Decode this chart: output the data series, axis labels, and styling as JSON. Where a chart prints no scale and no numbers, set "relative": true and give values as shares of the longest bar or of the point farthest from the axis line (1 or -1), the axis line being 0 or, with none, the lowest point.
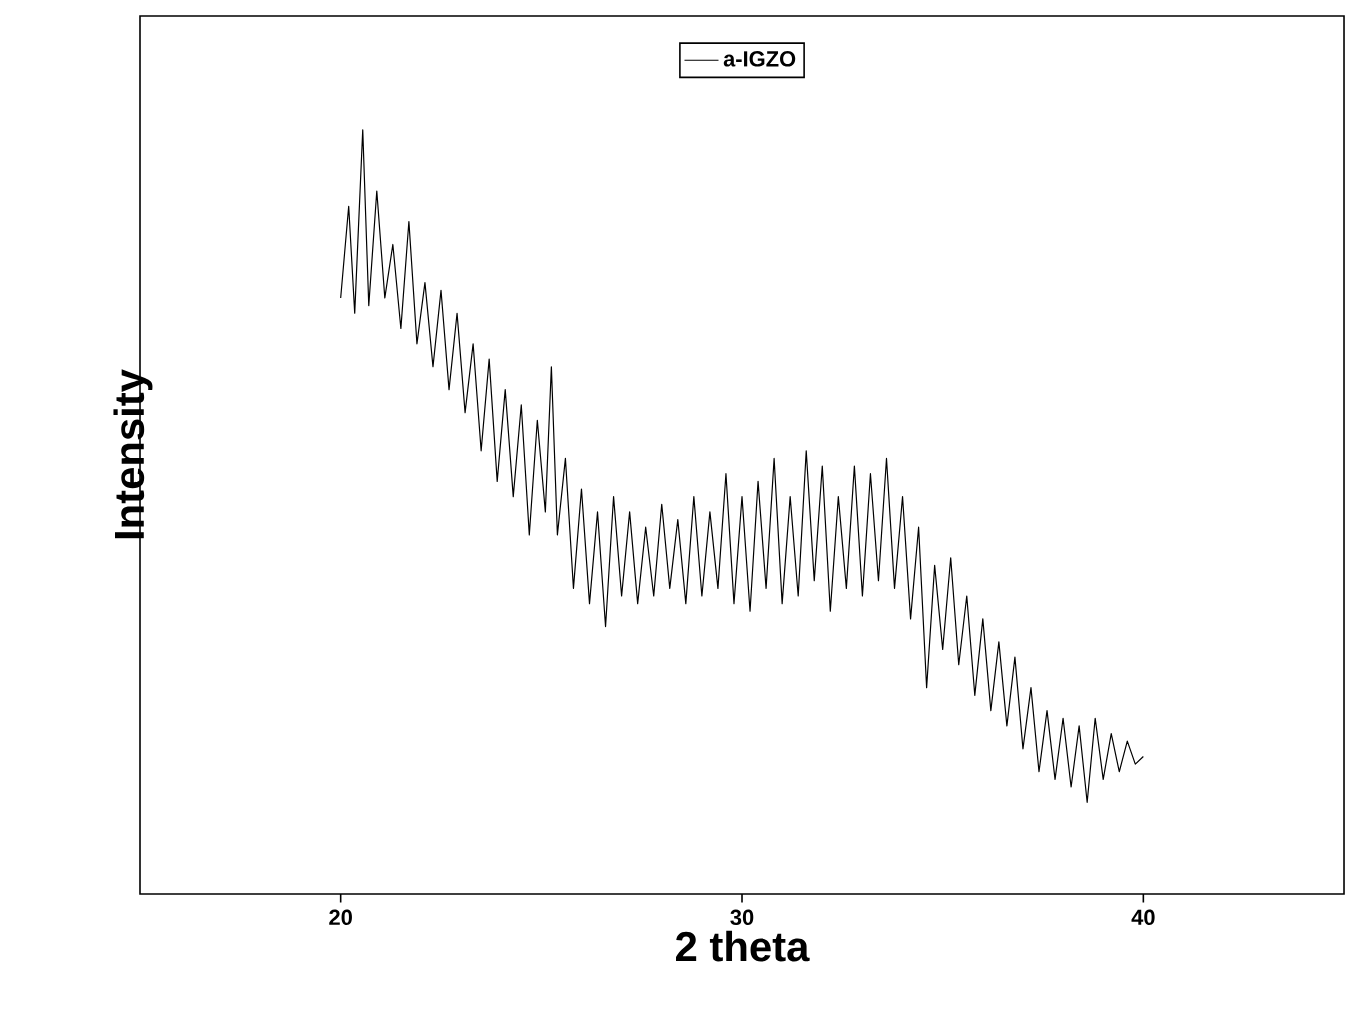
{
  "chart_data": {
    "type": "line",
    "xlabel": "2 theta",
    "ylabel": "Intensity",
    "relative": true,
    "xlim": [
      15,
      45
    ],
    "xticks": [
      20,
      30,
      40
    ],
    "legend": "top",
    "marker": "none",
    "line_style": "solid",
    "series": [
      {
        "name": "a-IGZO",
        "color": "#000000",
        "x": [
          20,
          20.2,
          20.35,
          20.55,
          20.7,
          20.9,
          21.1,
          21.3,
          21.5,
          21.7,
          21.9,
          22.1,
          22.3,
          22.5,
          22.7,
          22.9,
          23.1,
          23.3,
          23.5,
          23.7,
          23.9,
          24.1,
          24.3,
          24.5,
          24.7,
          24.9,
          25.1,
          25.25,
          25.4,
          25.6,
          25.8,
          26.0,
          26.2,
          26.4,
          26.6,
          26.8,
          27.0,
          27.2,
          27.4,
          27.6,
          27.8,
          28.0,
          28.2,
          28.4,
          28.6,
          28.8,
          29.0,
          29.2,
          29.4,
          29.6,
          29.8,
          30.0,
          30.2,
          30.4,
          30.6,
          30.8,
          31.0,
          31.2,
          31.4,
          31.6,
          31.8,
          32.0,
          32.2,
          32.4,
          32.6,
          32.8,
          33.0,
          33.2,
          33.4,
          33.6,
          33.8,
          34.0,
          34.2,
          34.4,
          34.6,
          34.8,
          35.0,
          35.2,
          35.4,
          35.6,
          35.8,
          36.0,
          36.2,
          36.4,
          36.6,
          36.8,
          37.0,
          37.2,
          37.4,
          37.6,
          37.8,
          38.0,
          38.2,
          38.4,
          38.6,
          38.8,
          39.0,
          39.2,
          39.4,
          39.6,
          39.8,
          40.0
        ],
        "values": [
          0.78,
          0.9,
          0.76,
          1.0,
          0.77,
          0.92,
          0.78,
          0.85,
          0.74,
          0.88,
          0.72,
          0.8,
          0.69,
          0.79,
          0.66,
          0.76,
          0.63,
          0.72,
          0.58,
          0.7,
          0.54,
          0.66,
          0.52,
          0.64,
          0.47,
          0.62,
          0.5,
          0.69,
          0.47,
          0.57,
          0.4,
          0.53,
          0.38,
          0.5,
          0.35,
          0.52,
          0.39,
          0.5,
          0.38,
          0.48,
          0.39,
          0.51,
          0.4,
          0.49,
          0.38,
          0.52,
          0.39,
          0.5,
          0.4,
          0.55,
          0.38,
          0.52,
          0.37,
          0.54,
          0.4,
          0.57,
          0.38,
          0.52,
          0.39,
          0.58,
          0.41,
          0.56,
          0.37,
          0.52,
          0.4,
          0.56,
          0.39,
          0.55,
          0.41,
          0.57,
          0.4,
          0.52,
          0.36,
          0.48,
          0.27,
          0.43,
          0.32,
          0.44,
          0.3,
          0.39,
          0.26,
          0.36,
          0.24,
          0.33,
          0.22,
          0.31,
          0.19,
          0.27,
          0.16,
          0.24,
          0.15,
          0.23,
          0.14,
          0.22,
          0.12,
          0.23,
          0.15,
          0.21,
          0.16,
          0.2,
          0.17,
          0.18
        ]
      }
    ]
  }
}
